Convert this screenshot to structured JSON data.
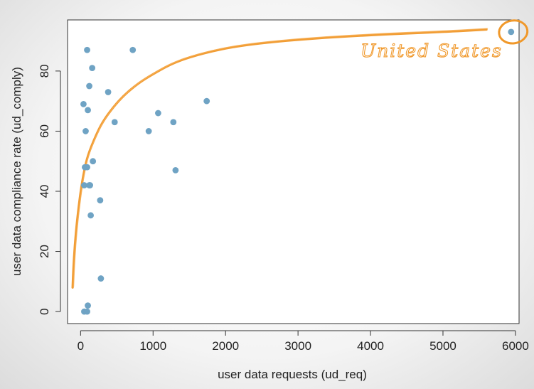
{
  "chart_data": {
    "type": "scatter",
    "title": "",
    "xlabel": "user data requests (ud_req)",
    "ylabel": "user data compliance rate (ud_comply)",
    "xlim": [
      -180,
      6050
    ],
    "ylim": [
      -4,
      97
    ],
    "xticks": [
      0,
      1000,
      2000,
      3000,
      4000,
      5000,
      6000
    ],
    "yticks": [
      0,
      20,
      40,
      60,
      80
    ],
    "grid": false,
    "legend": "none",
    "point_color": "#6fa3c4",
    "curve_color": "#f0982a",
    "points": [
      {
        "x": 90,
        "y": 87
      },
      {
        "x": 720,
        "y": 87
      },
      {
        "x": 160,
        "y": 81
      },
      {
        "x": 120,
        "y": 75
      },
      {
        "x": 380,
        "y": 73
      },
      {
        "x": 1740,
        "y": 70
      },
      {
        "x": 40,
        "y": 69
      },
      {
        "x": 100,
        "y": 67
      },
      {
        "x": 1070,
        "y": 66
      },
      {
        "x": 470,
        "y": 63
      },
      {
        "x": 1280,
        "y": 63
      },
      {
        "x": 70,
        "y": 60
      },
      {
        "x": 940,
        "y": 60
      },
      {
        "x": 170,
        "y": 50
      },
      {
        "x": 60,
        "y": 48
      },
      {
        "x": 90,
        "y": 48
      },
      {
        "x": 1310,
        "y": 47
      },
      {
        "x": 50,
        "y": 42
      },
      {
        "x": 120,
        "y": 42
      },
      {
        "x": 130,
        "y": 42
      },
      {
        "x": 270,
        "y": 37
      },
      {
        "x": 140,
        "y": 32
      },
      {
        "x": 280,
        "y": 11
      },
      {
        "x": 100,
        "y": 2
      },
      {
        "x": 50,
        "y": 0
      },
      {
        "x": 90,
        "y": 0
      },
      {
        "x": 5940,
        "y": 93
      }
    ],
    "trend_curve": [
      [
        -110,
        8
      ],
      [
        -100,
        14
      ],
      [
        -80,
        22
      ],
      [
        -50,
        30
      ],
      [
        0,
        40
      ],
      [
        50,
        47
      ],
      [
        100,
        52
      ],
      [
        200,
        58
      ],
      [
        300,
        63
      ],
      [
        450,
        68
      ],
      [
        600,
        72
      ],
      [
        800,
        76
      ],
      [
        1000,
        79
      ],
      [
        1300,
        83
      ],
      [
        1700,
        86
      ],
      [
        2200,
        88.5
      ],
      [
        3000,
        90.5
      ],
      [
        4000,
        92
      ],
      [
        5000,
        93
      ],
      [
        5600,
        93.8
      ]
    ],
    "annotation": {
      "text": "United States",
      "target_x": 5940,
      "target_y": 93
    }
  }
}
